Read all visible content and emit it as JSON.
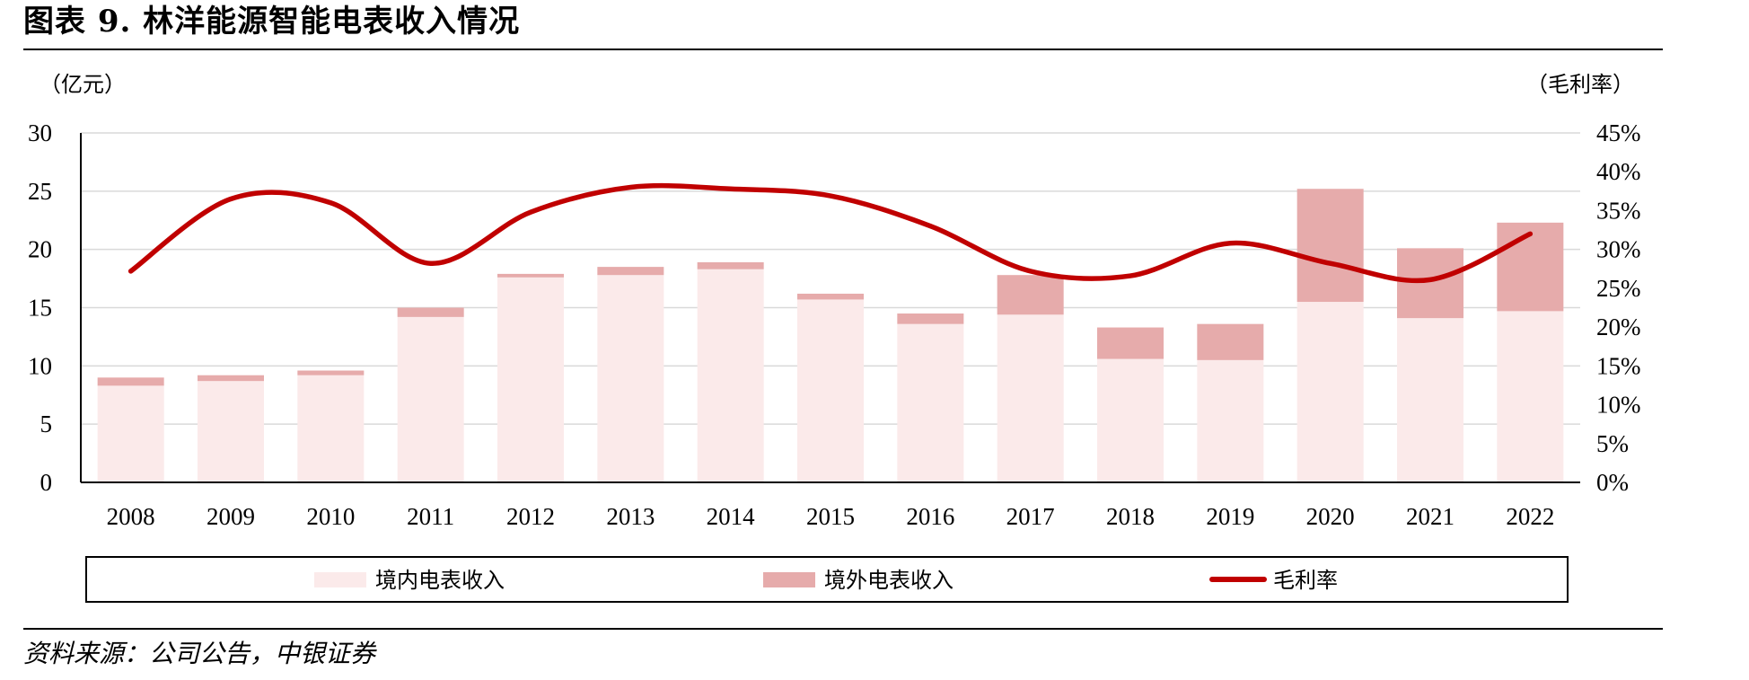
{
  "figure": {
    "title": "图表 9. 林洋能源智能电表收入情况",
    "source": "资料来源：公司公告，中银证券"
  },
  "colors": {
    "domestic": "#fbeaea",
    "overseas": "#e6abab",
    "margin_line": "#c00000",
    "gridline": "#d9d9d9"
  },
  "chart_data": {
    "type": "bar",
    "stacked": true,
    "categories": [
      "2008",
      "2009",
      "2010",
      "2011",
      "2012",
      "2013",
      "2014",
      "2015",
      "2016",
      "2017",
      "2018",
      "2019",
      "2020",
      "2021",
      "2022"
    ],
    "series": [
      {
        "name": "境内电表收入",
        "type": "bar",
        "axis": "left",
        "values": [
          8.3,
          8.7,
          9.2,
          14.2,
          17.6,
          17.8,
          18.3,
          15.7,
          13.6,
          14.4,
          10.6,
          10.5,
          15.5,
          14.1,
          14.7
        ]
      },
      {
        "name": "境外电表收入",
        "type": "bar",
        "axis": "left",
        "values": [
          0.7,
          0.5,
          0.4,
          0.8,
          0.3,
          0.7,
          0.6,
          0.5,
          0.9,
          3.4,
          2.7,
          3.1,
          9.7,
          6.0,
          7.6
        ]
      },
      {
        "name": "毛利率",
        "type": "line",
        "axis": "right",
        "values": [
          27.2,
          36.5,
          36.0,
          28.2,
          34.8,
          38.0,
          37.8,
          36.9,
          33.0,
          27.2,
          26.6,
          30.8,
          28.2,
          26.1,
          32.0
        ]
      }
    ],
    "y_left": {
      "label": "（亿元）",
      "ylim": [
        0,
        30
      ],
      "ticks": [
        "0",
        "5",
        "10",
        "15",
        "20",
        "25",
        "30"
      ]
    },
    "y_right": {
      "label": "（毛利率）",
      "ylim": [
        0,
        45
      ],
      "ticks": [
        "0%",
        "5%",
        "10%",
        "15%",
        "20%",
        "25%",
        "30%",
        "35%",
        "40%",
        "45%"
      ]
    },
    "grid": true,
    "legend": "bottom"
  }
}
